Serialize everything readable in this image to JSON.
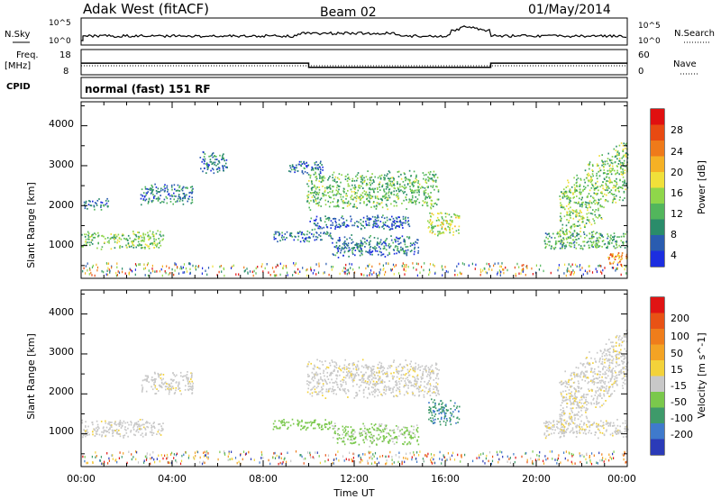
{
  "header": {
    "title": "Adak West (fitACF)",
    "beam": "Beam 02",
    "date": "01/May/2014"
  },
  "noise_panel": {
    "left_label": "N.Sky",
    "right_label": "N.Search",
    "left_ticks": [
      "10^5",
      "10^0"
    ],
    "right_ticks": [
      "10^5",
      "10^0"
    ]
  },
  "freq_panel": {
    "left_label_line1": "Freq.",
    "left_label_line2": "[MHz]",
    "right_label": "Nave",
    "left_ticks": [
      "18",
      "8"
    ],
    "right_ticks": [
      "60",
      "0"
    ],
    "cpid_label": "CPID",
    "cpid_text": "normal (fast) 151 RF",
    "freq_steps": [
      {
        "start_h": 0,
        "end_h": 10,
        "value_mhz": 12.5
      },
      {
        "start_h": 10,
        "end_h": 18,
        "value_mhz": 10.4
      },
      {
        "start_h": 18,
        "end_h": 24,
        "value_mhz": 12.5
      }
    ]
  },
  "x_axis": {
    "label": "Time UT",
    "ticks": [
      "00:00",
      "04:00",
      "08:00",
      "12:00",
      "16:00",
      "20:00",
      "00:00"
    ]
  },
  "power_panel": {
    "ylabel": "Slant Range [km]",
    "yticks": [
      "4000",
      "3000",
      "2000",
      "1000"
    ],
    "colorbar_label": "Power [dB]",
    "colorbar_ticks": [
      "28",
      "24",
      "20",
      "16",
      "12",
      "8",
      "4"
    ],
    "colors": [
      "#1c2ee0",
      "#2a5cb0",
      "#2a8c6a",
      "#52b65c",
      "#8fd64a",
      "#f0e03a",
      "#f5b125",
      "#ef7a1a",
      "#e84a12",
      "#e01010"
    ]
  },
  "velocity_panel": {
    "ylabel": "Slant Range [km]",
    "yticks": [
      "4000",
      "3000",
      "2000",
      "1000"
    ],
    "colorbar_label": "Velocity [m s^-1]",
    "colorbar_ticks": [
      "200",
      "100",
      "50",
      "15",
      "-15",
      "-50",
      "-100",
      "-200"
    ],
    "colors": [
      "#2b3bb8",
      "#3f7acc",
      "#3e9a6a",
      "#7ac84c",
      "#c8c8c8",
      "#f3d23a",
      "#f3a324",
      "#ef7d1b",
      "#e85215",
      "#e01414"
    ]
  },
  "chart_data": [
    {
      "type": "heatmap",
      "title": "Adak West (fitACF)",
      "xlabel": "Time UT",
      "ylabel": "Slant Range [km]",
      "xlim": [
        0,
        24
      ],
      "ylim": [
        180,
        4600
      ],
      "zlabel": "Power [dB]",
      "zlim": [
        0,
        30
      ],
      "regions": [
        {
          "t0": 0.0,
          "t1": 3.6,
          "r0": 900,
          "r1": 1400,
          "value": 12
        },
        {
          "t0": 0.1,
          "t1": 1.2,
          "r0": 1900,
          "r1": 2200,
          "value": 6
        },
        {
          "t0": 2.6,
          "t1": 4.9,
          "r0": 2000,
          "r1": 2600,
          "value": 6
        },
        {
          "t0": 5.2,
          "t1": 6.4,
          "r0": 2800,
          "r1": 3400,
          "value": 5
        },
        {
          "t0": 8.4,
          "t1": 11.0,
          "r0": 1100,
          "r1": 1400,
          "value": 6
        },
        {
          "t0": 9.1,
          "t1": 10.6,
          "r0": 2800,
          "r1": 3200,
          "value": 5
        },
        {
          "t0": 9.9,
          "t1": 15.7,
          "r0": 1900,
          "r1": 2900,
          "value": 11
        },
        {
          "t0": 10.0,
          "t1": 14.4,
          "r0": 1400,
          "r1": 1800,
          "value": 5
        },
        {
          "t0": 11.0,
          "t1": 14.8,
          "r0": 700,
          "r1": 1300,
          "value": 6
        },
        {
          "t0": 15.2,
          "t1": 16.6,
          "r0": 1200,
          "r1": 1900,
          "value": 14
        },
        {
          "t0": 21.0,
          "t1": 24.0,
          "r0": 1500,
          "r1": 3200,
          "value": 12
        },
        {
          "t0": 20.3,
          "t1": 24.0,
          "r0": 900,
          "r1": 1400,
          "value": 10
        },
        {
          "t0": 23.1,
          "t1": 24.0,
          "r0": 500,
          "r1": 900,
          "value": 22
        }
      ]
    },
    {
      "type": "heatmap",
      "xlabel": "Time UT",
      "ylabel": "Slant Range [km]",
      "xlim": [
        0,
        24
      ],
      "ylim": [
        180,
        4600
      ],
      "zlabel": "Velocity [m s^-1]",
      "zlim": [
        -200,
        200
      ],
      "regions": [
        {
          "t0": 0.0,
          "t1": 3.6,
          "r0": 900,
          "r1": 1400,
          "value": 0
        },
        {
          "t0": 2.6,
          "t1": 4.9,
          "r0": 2000,
          "r1": 2600,
          "value": 0
        },
        {
          "t0": 9.9,
          "t1": 15.7,
          "r0": 1900,
          "r1": 2900,
          "value": 0
        },
        {
          "t0": 8.4,
          "t1": 11.0,
          "r0": 1100,
          "r1": 1400,
          "value": -60
        },
        {
          "t0": 11.0,
          "t1": 14.8,
          "r0": 700,
          "r1": 1300,
          "value": -50
        },
        {
          "t0": 15.2,
          "t1": 16.6,
          "r0": 1200,
          "r1": 1900,
          "value": -110
        },
        {
          "t0": 21.0,
          "t1": 24.0,
          "r0": 1500,
          "r1": 3200,
          "value": 0
        },
        {
          "t0": 20.3,
          "t1": 24.0,
          "r0": 900,
          "r1": 1400,
          "value": 0
        }
      ]
    }
  ]
}
